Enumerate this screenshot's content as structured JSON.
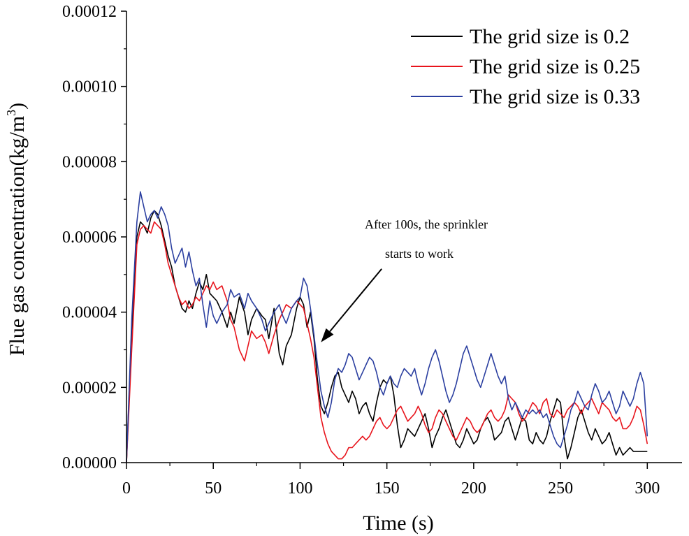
{
  "chart_data": {
    "type": "line",
    "title": "",
    "xlabel": "Time (s)",
    "ylabel_main": "Flue gas concentration(kg/m",
    "ylabel_sup": "3",
    "ylabel_close": ")",
    "xlim": [
      0,
      320
    ],
    "ylim": [
      0,
      0.00012
    ],
    "x_ticks": [
      0,
      50,
      100,
      150,
      200,
      250,
      300
    ],
    "x_tick_labels": [
      "0",
      "50",
      "100",
      "150",
      "200",
      "250",
      "300"
    ],
    "y_ticks": [
      0,
      2e-05,
      4e-05,
      6e-05,
      8e-05,
      0.0001,
      0.00012
    ],
    "y_tick_labels": [
      "0.00000",
      "0.00002",
      "0.00004",
      "0.00006",
      "0.00008",
      "0.00010",
      "0.00012"
    ],
    "legend_position": "top-right",
    "series": [
      {
        "name": "The grid size is 0.2",
        "color": "#000000",
        "x": [
          0,
          3,
          6,
          8,
          10,
          12,
          14,
          16,
          18,
          20,
          22,
          24,
          26,
          28,
          30,
          32,
          34,
          36,
          38,
          40,
          42,
          44,
          46,
          48,
          50,
          52,
          55,
          58,
          60,
          62,
          65,
          68,
          70,
          72,
          75,
          78,
          80,
          82,
          85,
          88,
          90,
          92,
          95,
          98,
          100,
          102,
          104,
          106,
          108,
          110,
          112,
          114,
          116,
          118,
          120,
          122,
          124,
          126,
          128,
          130,
          132,
          134,
          136,
          138,
          140,
          142,
          144,
          146,
          148,
          150,
          152,
          154,
          156,
          158,
          160,
          162,
          164,
          166,
          168,
          170,
          172,
          174,
          176,
          178,
          180,
          182,
          184,
          186,
          188,
          190,
          192,
          194,
          196,
          198,
          200,
          202,
          204,
          206,
          208,
          210,
          212,
          214,
          216,
          218,
          220,
          222,
          224,
          226,
          228,
          230,
          232,
          234,
          236,
          238,
          240,
          242,
          244,
          246,
          248,
          250,
          252,
          254,
          256,
          258,
          260,
          262,
          264,
          266,
          268,
          270,
          272,
          274,
          276,
          278,
          280,
          282,
          284,
          286,
          288,
          290,
          292,
          294,
          296,
          298,
          300
        ],
        "y": [
          0,
          3.5e-05,
          6e-05,
          6.4e-05,
          6.3e-05,
          6.1e-05,
          6.5e-05,
          6.7e-05,
          6.6e-05,
          6.3e-05,
          5.9e-05,
          5.5e-05,
          5.2e-05,
          4.7e-05,
          4.4e-05,
          4.1e-05,
          4e-05,
          4.3e-05,
          4.1e-05,
          4.5e-05,
          4.8e-05,
          4.6e-05,
          5e-05,
          4.5e-05,
          4.4e-05,
          4.3e-05,
          4e-05,
          3.6e-05,
          4e-05,
          3.7e-05,
          4.4e-05,
          4e-05,
          3.4e-05,
          3.8e-05,
          4.1e-05,
          3.9e-05,
          3.8e-05,
          3.3e-05,
          4.1e-05,
          2.9e-05,
          2.6e-05,
          3.1e-05,
          3.4e-05,
          4.1e-05,
          4.4e-05,
          4.2e-05,
          3.6e-05,
          4e-05,
          3.3e-05,
          2.2e-05,
          1.5e-05,
          1.3e-05,
          1.6e-05,
          2e-05,
          2.3e-05,
          2.4e-05,
          2e-05,
          1.8e-05,
          1.6e-05,
          1.9e-05,
          1.7e-05,
          1.3e-05,
          1.5e-05,
          1.6e-05,
          1.3e-05,
          1.1e-05,
          1.6e-05,
          2e-05,
          2.2e-05,
          2.1e-05,
          2.3e-05,
          1.8e-05,
          1e-05,
          4e-06,
          6e-06,
          9e-06,
          8e-06,
          7e-06,
          9e-06,
          1.1e-05,
          1.3e-05,
          9e-06,
          4e-06,
          7e-06,
          9e-06,
          1.2e-05,
          1.4e-05,
          1.1e-05,
          8e-06,
          5e-06,
          4e-06,
          6e-06,
          9e-06,
          7e-06,
          5e-06,
          6e-06,
          9e-06,
          1.1e-05,
          1.2e-05,
          1e-05,
          6e-06,
          7e-06,
          8e-06,
          1.1e-05,
          1.2e-05,
          9e-06,
          6e-06,
          9e-06,
          1.2e-05,
          1.1e-05,
          6e-06,
          5e-06,
          8e-06,
          6e-06,
          5e-06,
          7e-06,
          1.1e-05,
          1.4e-05,
          1.7e-05,
          1.6e-05,
          7e-06,
          1e-06,
          4e-06,
          8e-06,
          1.2e-05,
          1.4e-05,
          1.1e-05,
          8e-06,
          6e-06,
          9e-06,
          7e-06,
          5e-06,
          6e-06,
          8e-06,
          5e-06,
          2e-06,
          4e-06,
          2e-06,
          3e-06,
          4e-06,
          3e-06,
          3e-06,
          3e-06,
          3e-06,
          3e-06
        ]
      },
      {
        "name": "The grid size is 0.25",
        "color": "#e8141c",
        "x": [
          0,
          3,
          6,
          8,
          10,
          12,
          14,
          16,
          18,
          20,
          22,
          24,
          26,
          28,
          30,
          32,
          34,
          36,
          38,
          40,
          42,
          44,
          46,
          48,
          50,
          52,
          55,
          58,
          60,
          62,
          65,
          68,
          70,
          72,
          75,
          78,
          80,
          82,
          85,
          88,
          90,
          92,
          95,
          98,
          100,
          102,
          104,
          106,
          108,
          110,
          112,
          114,
          116,
          118,
          120,
          122,
          124,
          126,
          128,
          130,
          132,
          134,
          136,
          138,
          140,
          142,
          144,
          146,
          148,
          150,
          152,
          154,
          156,
          158,
          160,
          162,
          164,
          166,
          168,
          170,
          172,
          174,
          176,
          178,
          180,
          182,
          184,
          186,
          188,
          190,
          192,
          194,
          196,
          198,
          200,
          202,
          204,
          206,
          208,
          210,
          212,
          214,
          216,
          218,
          220,
          222,
          224,
          226,
          228,
          230,
          232,
          234,
          236,
          238,
          240,
          242,
          244,
          246,
          248,
          250,
          252,
          254,
          256,
          258,
          260,
          262,
          264,
          266,
          268,
          270,
          272,
          274,
          276,
          278,
          280,
          282,
          284,
          286,
          288,
          290,
          292,
          294,
          296,
          298,
          300
        ],
        "y": [
          0,
          3e-05,
          5.8e-05,
          6.2e-05,
          6.3e-05,
          6.2e-05,
          6.1e-05,
          6.4e-05,
          6.3e-05,
          6.2e-05,
          5.8e-05,
          5.3e-05,
          5e-05,
          4.7e-05,
          4.4e-05,
          4.2e-05,
          4.3e-05,
          4.1e-05,
          4.2e-05,
          4.4e-05,
          4.3e-05,
          4.5e-05,
          4.7e-05,
          4.6e-05,
          4.8e-05,
          4.6e-05,
          4.7e-05,
          4.3e-05,
          3.8e-05,
          3.6e-05,
          3e-05,
          2.7e-05,
          3.1e-05,
          3.5e-05,
          3.3e-05,
          3.4e-05,
          3.2e-05,
          2.9e-05,
          3.4e-05,
          3.8e-05,
          4e-05,
          4.2e-05,
          4.1e-05,
          4.3e-05,
          4.2e-05,
          4.1e-05,
          3.7e-05,
          3.3e-05,
          2.8e-05,
          2e-05,
          1.2e-05,
          8e-06,
          5e-06,
          3e-06,
          2e-06,
          1e-06,
          1e-06,
          2e-06,
          4e-06,
          4e-06,
          5e-06,
          6e-06,
          7e-06,
          6e-06,
          7e-06,
          9e-06,
          1.1e-05,
          1.2e-05,
          1e-05,
          9e-06,
          1e-05,
          1.2e-05,
          1.4e-05,
          1.5e-05,
          1.3e-05,
          1.1e-05,
          1.2e-05,
          1.3e-05,
          1.5e-05,
          1.3e-05,
          1e-05,
          8e-06,
          9e-06,
          1.2e-05,
          1.4e-05,
          1.3e-05,
          1.1e-05,
          9e-06,
          7e-06,
          6e-06,
          8e-06,
          1e-05,
          1.2e-05,
          1.1e-05,
          9e-06,
          8e-06,
          9e-06,
          1.1e-05,
          1.3e-05,
          1.4e-05,
          1.2e-05,
          1.1e-05,
          1.2e-05,
          1.4e-05,
          1.8e-05,
          1.7e-05,
          1.6e-05,
          1.3e-05,
          1.1e-05,
          1.2e-05,
          1.4e-05,
          1.6e-05,
          1.5e-05,
          1.3e-05,
          1.6e-05,
          1.7e-05,
          1.3e-05,
          1.2e-05,
          1.4e-05,
          1.3e-05,
          1.2e-05,
          1.4e-05,
          1.5e-05,
          1.6e-05,
          1.5e-05,
          1.3e-05,
          1.5e-05,
          1.6e-05,
          1.7e-05,
          1.5e-05,
          1.3e-05,
          1.6e-05,
          1.5e-05,
          1.4e-05,
          1.2e-05,
          1.1e-05,
          1.2e-05,
          9e-06,
          9e-06,
          1e-05,
          1.2e-05,
          1.5e-05,
          1.4e-05,
          1e-05,
          5e-06
        ]
      },
      {
        "name": "The grid size is 0.33",
        "color": "#2b3fa0",
        "x": [
          0,
          3,
          6,
          8,
          10,
          12,
          14,
          16,
          18,
          20,
          22,
          24,
          26,
          28,
          30,
          32,
          34,
          36,
          38,
          40,
          42,
          44,
          46,
          48,
          50,
          52,
          55,
          58,
          60,
          62,
          65,
          68,
          70,
          72,
          75,
          78,
          80,
          82,
          85,
          88,
          90,
          92,
          95,
          98,
          100,
          102,
          104,
          106,
          108,
          110,
          112,
          114,
          116,
          118,
          120,
          122,
          124,
          126,
          128,
          130,
          132,
          134,
          136,
          138,
          140,
          142,
          144,
          146,
          148,
          150,
          152,
          154,
          156,
          158,
          160,
          162,
          164,
          166,
          168,
          170,
          172,
          174,
          176,
          178,
          180,
          182,
          184,
          186,
          188,
          190,
          192,
          194,
          196,
          198,
          200,
          202,
          204,
          206,
          208,
          210,
          212,
          214,
          216,
          218,
          220,
          222,
          224,
          226,
          228,
          230,
          232,
          234,
          236,
          238,
          240,
          242,
          244,
          246,
          248,
          250,
          252,
          254,
          256,
          258,
          260,
          262,
          264,
          266,
          268,
          270,
          272,
          274,
          276,
          278,
          280,
          282,
          284,
          286,
          288,
          290,
          292,
          294,
          296,
          298,
          300
        ],
        "y": [
          0,
          3.8e-05,
          6.4e-05,
          7.2e-05,
          6.8e-05,
          6.4e-05,
          6.6e-05,
          6.7e-05,
          6.5e-05,
          6.8e-05,
          6.6e-05,
          6.3e-05,
          5.7e-05,
          5.3e-05,
          5.5e-05,
          5.7e-05,
          5.2e-05,
          5.6e-05,
          5.1e-05,
          4.7e-05,
          4.9e-05,
          4.2e-05,
          3.6e-05,
          4.3e-05,
          3.9e-05,
          3.7e-05,
          4e-05,
          4.2e-05,
          4.6e-05,
          4.4e-05,
          4.5e-05,
          4.1e-05,
          4.5e-05,
          4.3e-05,
          4.1e-05,
          3.8e-05,
          3.5e-05,
          3.7e-05,
          4e-05,
          4.2e-05,
          3.9e-05,
          3.7e-05,
          4.1e-05,
          4.3e-05,
          4.4e-05,
          4.9e-05,
          4.7e-05,
          4.1e-05,
          3.4e-05,
          2.6e-05,
          1.9e-05,
          1.5e-05,
          1.2e-05,
          1.6e-05,
          2.2e-05,
          2.5e-05,
          2.4e-05,
          2.6e-05,
          2.9e-05,
          2.8e-05,
          2.5e-05,
          2.2e-05,
          2.4e-05,
          2.6e-05,
          2.8e-05,
          2.7e-05,
          2.4e-05,
          2e-05,
          1.8e-05,
          2.1e-05,
          2.3e-05,
          2.1e-05,
          2e-05,
          2.3e-05,
          2.5e-05,
          2.4e-05,
          2.3e-05,
          2.5e-05,
          2.1e-05,
          1.8e-05,
          2.1e-05,
          2.5e-05,
          2.8e-05,
          3e-05,
          2.7e-05,
          2.3e-05,
          1.9e-05,
          1.6e-05,
          1.8e-05,
          2.1e-05,
          2.5e-05,
          2.9e-05,
          3.1e-05,
          2.8e-05,
          2.5e-05,
          2.2e-05,
          2e-05,
          2.3e-05,
          2.6e-05,
          2.9e-05,
          2.6e-05,
          2.3e-05,
          2.1e-05,
          2.3e-05,
          1.7e-05,
          1.4e-05,
          1.6e-05,
          1.4e-05,
          1.2e-05,
          1.4e-05,
          1.3e-05,
          1.4e-05,
          1.3e-05,
          1.4e-05,
          1.2e-05,
          1.3e-05,
          1e-05,
          7e-06,
          5e-06,
          4e-06,
          7e-06,
          1e-05,
          1.4e-05,
          1.6e-05,
          1.9e-05,
          1.7e-05,
          1.5e-05,
          1.4e-05,
          1.8e-05,
          2.1e-05,
          1.9e-05,
          1.6e-05,
          1.7e-05,
          1.9e-05,
          1.6e-05,
          1.3e-05,
          1.5e-05,
          1.9e-05,
          1.7e-05,
          1.5e-05,
          1.7e-05,
          2.1e-05,
          2.4e-05,
          2.1e-05,
          7e-06
        ]
      }
    ],
    "annotation": {
      "line1": "After 100s, the sprinkler",
      "line2": "starts to work",
      "arrow_target": [
        112,
        3.2e-05
      ],
      "arrow_source": [
        147,
        5.15e-05
      ]
    }
  }
}
